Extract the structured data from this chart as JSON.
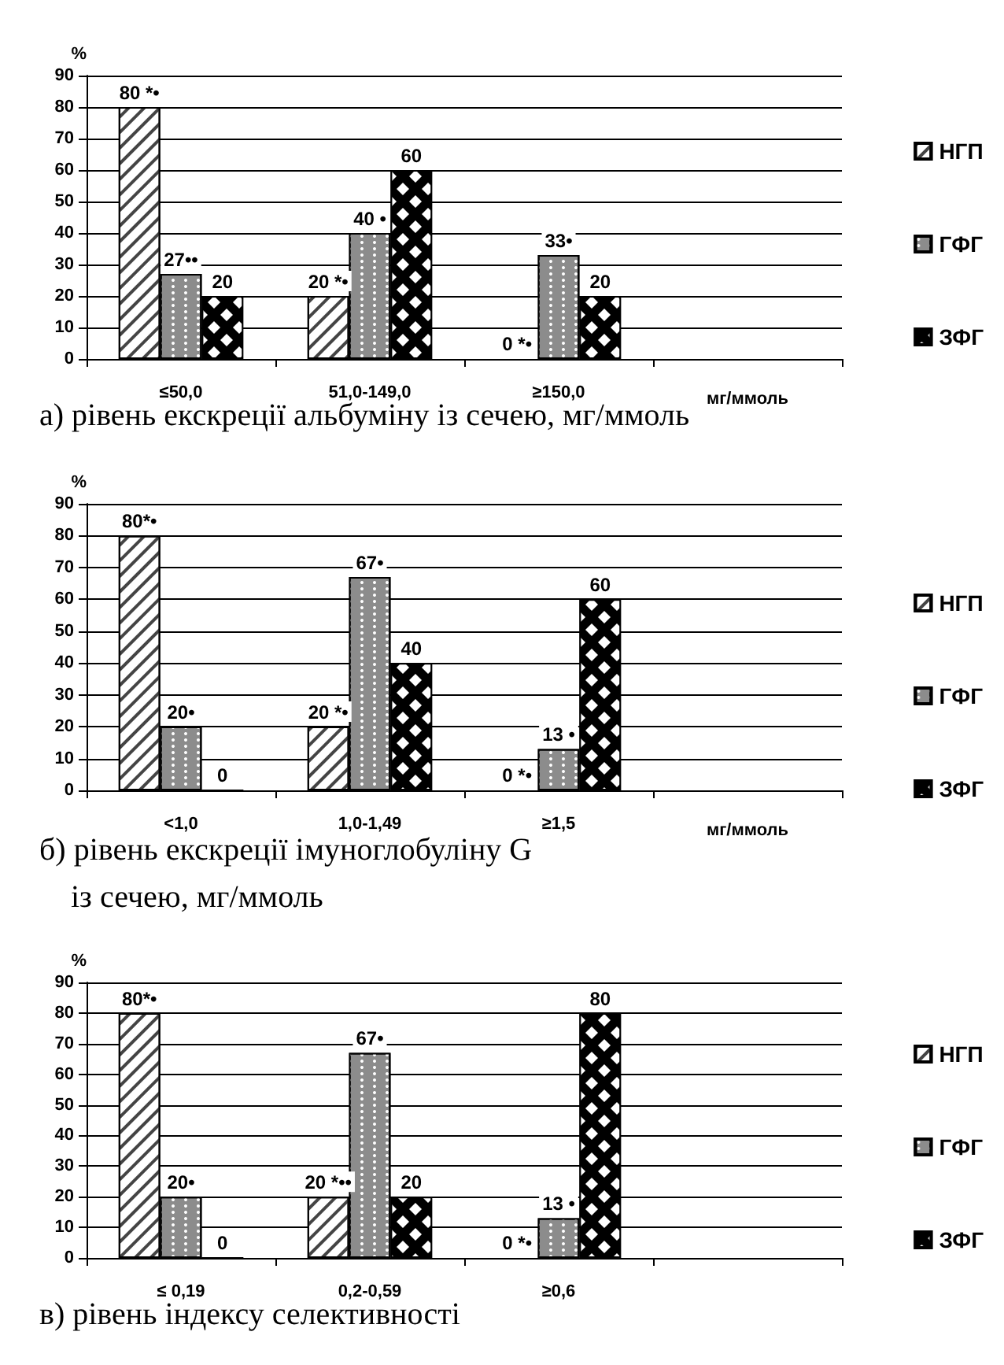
{
  "chart_data": [
    {
      "type": "bar",
      "title": "а) рівень екскреції альбуміну із сечею, мг/ммоль",
      "xlabel": "мг/ммоль",
      "ylabel": "%",
      "categories": [
        "≤50,0",
        "51,0-149,0",
        "≥150,0",
        null
      ],
      "ylim": [
        0,
        90
      ],
      "yticks": [
        0,
        10,
        20,
        30,
        40,
        50,
        60,
        70,
        80,
        90
      ],
      "grid": "y",
      "legend": "right",
      "series": [
        {
          "name": "НГП",
          "color": "#ffffff",
          "values": [
            80,
            20,
            0,
            null
          ],
          "value_labels": [
            "80 *•",
            "20 *•",
            "0 *•",
            null
          ]
        },
        {
          "name": "ГФГ",
          "color": "#8c8c8c",
          "values": [
            27,
            40,
            33,
            null
          ],
          "value_labels": [
            "27••",
            "40 •",
            "33•",
            null
          ]
        },
        {
          "name": "ЗФГ",
          "color": "#000000",
          "values": [
            20,
            60,
            20,
            null
          ],
          "value_labels": [
            "20",
            "60",
            "20",
            null
          ]
        }
      ]
    },
    {
      "type": "bar",
      "title": "б) рівень екскреції імуноглобуліну G\n    із сечею, мг/ммоль",
      "xlabel": "мг/ммоль",
      "ylabel": "%",
      "categories": [
        "<1,0",
        "1,0-1,49",
        "≥1,5",
        null
      ],
      "ylim": [
        0,
        90
      ],
      "yticks": [
        0,
        10,
        20,
        30,
        40,
        50,
        60,
        70,
        80,
        90
      ],
      "grid": "y",
      "legend": "right",
      "series": [
        {
          "name": "НГП",
          "color": "#ffffff",
          "values": [
            80,
            20,
            0,
            null
          ],
          "value_labels": [
            "80*•",
            "20 *•",
            "0 *•",
            null
          ]
        },
        {
          "name": "ГФГ",
          "color": "#8c8c8c",
          "values": [
            20,
            67,
            13,
            null
          ],
          "value_labels": [
            "20•",
            "67•",
            "13 •",
            null
          ]
        },
        {
          "name": "ЗФГ",
          "color": "#000000",
          "values": [
            0,
            40,
            60,
            null
          ],
          "value_labels": [
            "0",
            "40",
            "60",
            null
          ]
        }
      ]
    },
    {
      "type": "bar",
      "title": "в) рівень індексу селективності",
      "ylabel": "%",
      "categories": [
        "≤ 0,19",
        "0,2-0,59",
        "≥0,6",
        null
      ],
      "ylim": [
        0,
        90
      ],
      "yticks": [
        0,
        10,
        20,
        30,
        40,
        50,
        60,
        70,
        80,
        90
      ],
      "grid": "y",
      "legend": "right",
      "series": [
        {
          "name": "НГП",
          "color": "#ffffff",
          "values": [
            80,
            20,
            0,
            null
          ],
          "value_labels": [
            "80*•",
            "20 *••",
            "0 *•",
            null
          ]
        },
        {
          "name": "ГФГ",
          "color": "#8c8c8c",
          "values": [
            20,
            67,
            13,
            null
          ],
          "value_labels": [
            "20•",
            "67•",
            "13 •",
            null
          ]
        },
        {
          "name": "ЗФГ",
          "color": "#000000",
          "values": [
            0,
            20,
            80,
            null
          ],
          "value_labels": [
            "0",
            "20",
            "80",
            null
          ]
        }
      ]
    }
  ]
}
